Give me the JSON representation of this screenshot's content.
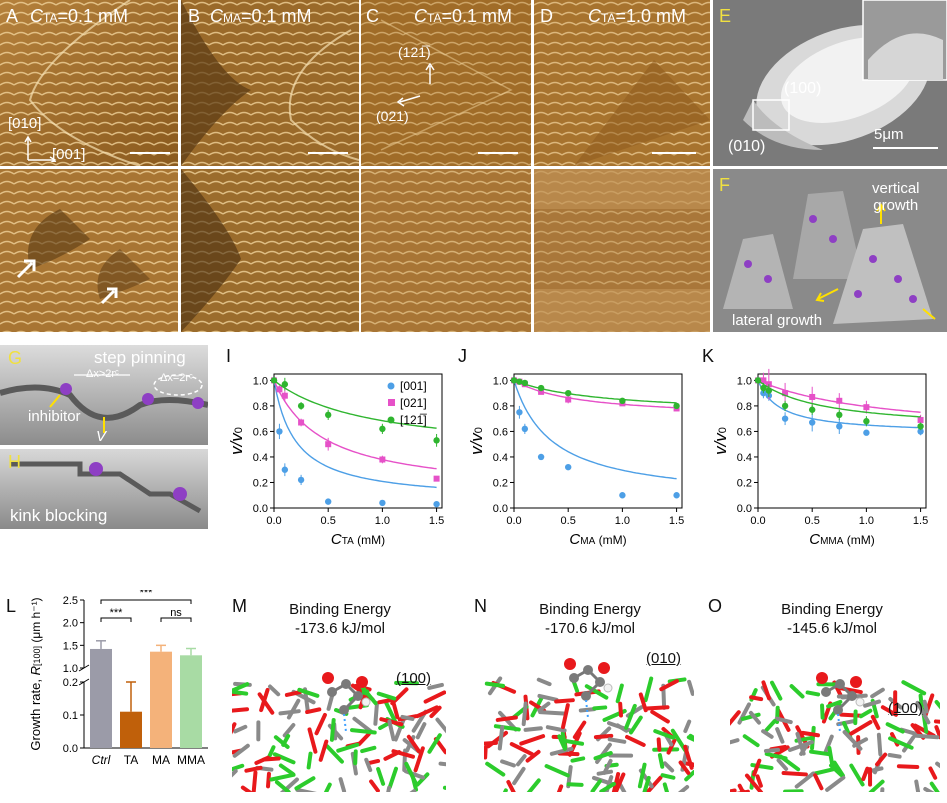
{
  "panels": {
    "A": {
      "letter": "A",
      "cond_sym": "C",
      "cond_sub": "TA",
      "cond_val": "=0.1 mM",
      "dir1": "[010]",
      "dir2": "[001]"
    },
    "B": {
      "letter": "B",
      "cond_sym": "C",
      "cond_sub": "MA",
      "cond_val": "=0.1 mM"
    },
    "C": {
      "letter": "C",
      "cond_sym": "C",
      "cond_sub": "TA",
      "cond_val": "=0.1 mM",
      "dir1": "(121̅)",
      "dir2": "(021)"
    },
    "D": {
      "letter": "D",
      "cond_sym": "C",
      "cond_sub": "TA",
      "cond_val": "=1.0 mM"
    },
    "E": {
      "letter": "E",
      "face1": "(100)",
      "face2": "(010)",
      "scale": "5μm"
    },
    "F": {
      "letter": "F",
      "label1": "vertical",
      "label2": "growth",
      "label3": "lateral growth"
    },
    "G": {
      "letter": "G",
      "title": "step pinning",
      "gap1": "Δx>2rᶜ",
      "gap2": "Δx=2rᶜ",
      "inhib": "inhibitor",
      "v": "V"
    },
    "H": {
      "letter": "H",
      "title": "kink blocking"
    },
    "I": {
      "letter": "I"
    },
    "J": {
      "letter": "J"
    },
    "K": {
      "letter": "K"
    },
    "L": {
      "letter": "L"
    },
    "M": {
      "letter": "M",
      "be_title": "Binding Energy",
      "be_value": "-173.6 kJ/mol",
      "face": "(100)"
    },
    "N": {
      "letter": "N",
      "be_title": "Binding Energy",
      "be_value": "-170.6 kJ/mol",
      "face": "(010)"
    },
    "O": {
      "letter": "O",
      "be_title": "Binding Energy",
      "be_value": "-145.6 kJ/mol",
      "face": "(100)"
    }
  },
  "colors": {
    "s001": "#4d9fe6",
    "s021": "#e651c8",
    "s121": "#2fb52f",
    "ctrl": "#9b9ba8",
    "ta": "#c0600a",
    "ma": "#f4b27a",
    "mma": "#a8dba4"
  },
  "chart_data": [
    {
      "type": "scatter",
      "panel": "I",
      "ylabel_v": "v",
      "ylabel_v0": "v",
      "ylabel_sub": "0",
      "xlabel_sym": "C",
      "xlabel_sub": "TA",
      "xlabel_unit": " (mM)",
      "xlim": [
        0,
        1.55
      ],
      "ylim": [
        0,
        1.05
      ],
      "xticks": [
        "0.0",
        "0.5",
        "1.0",
        "1.5"
      ],
      "xtick_vals": [
        0,
        0.5,
        1.0,
        1.5
      ],
      "yticks": [
        "0.0",
        "0.2",
        "0.4",
        "0.6",
        "0.8",
        "1.0"
      ],
      "ytick_vals": [
        0,
        0.2,
        0.4,
        0.6,
        0.8,
        1.0
      ],
      "legend": [
        "[001]",
        "[021]",
        "[121̅]"
      ],
      "series": [
        {
          "name": "[001]",
          "x": [
            0,
            0.05,
            0.1,
            0.25,
            0.5,
            1.0,
            1.5
          ],
          "y": [
            1.0,
            0.6,
            0.3,
            0.22,
            0.05,
            0.04,
            0.03
          ],
          "err": [
            0,
            0.06,
            0.05,
            0.04,
            0.01,
            0.01,
            0.01
          ],
          "fit": [
            1.0,
            0.95,
            0.2
          ]
        },
        {
          "name": "[021]",
          "x": [
            0,
            0.05,
            0.1,
            0.25,
            0.5,
            1.0,
            1.5
          ],
          "y": [
            1.0,
            0.93,
            0.88,
            0.67,
            0.5,
            0.38,
            0.23
          ],
          "err": [
            0,
            0.03,
            0.04,
            0.03,
            0.05,
            0.03,
            0.02
          ],
          "fit": [
            1.0,
            0.9,
            0.45
          ]
        },
        {
          "name": "[121̅]",
          "x": [
            0,
            0.1,
            0.25,
            0.5,
            1.0,
            1.5
          ],
          "y": [
            1.0,
            0.97,
            0.8,
            0.73,
            0.62,
            0.53
          ],
          "err": [
            0,
            0.05,
            0.03,
            0.04,
            0.04,
            0.05
          ],
          "fit": [
            1.0,
            0.6,
            0.9
          ]
        }
      ]
    },
    {
      "type": "scatter",
      "panel": "J",
      "ylabel_v": "v",
      "ylabel_v0": "v",
      "ylabel_sub": "0",
      "xlabel_sym": "C",
      "xlabel_sub": "MA",
      "xlabel_unit": " (mM)",
      "xlim": [
        0,
        1.55
      ],
      "ylim": [
        0,
        1.05
      ],
      "xticks": [
        "0.0",
        "0.5",
        "1.0",
        "1.5"
      ],
      "xtick_vals": [
        0,
        0.5,
        1.0,
        1.5
      ],
      "yticks": [
        "0.0",
        "0.2",
        "0.4",
        "0.6",
        "0.8",
        "1.0"
      ],
      "ytick_vals": [
        0,
        0.2,
        0.4,
        0.6,
        0.8,
        1.0
      ],
      "series": [
        {
          "name": "[001]",
          "x": [
            0,
            0.05,
            0.1,
            0.25,
            0.5,
            1.0,
            1.5
          ],
          "y": [
            1.0,
            0.75,
            0.62,
            0.4,
            0.32,
            0.1,
            0.1
          ],
          "err": [
            0,
            0.05,
            0.04,
            0.02,
            0.02,
            0.01,
            0.01
          ],
          "fit": [
            1.0,
            0.95,
            0.35
          ]
        },
        {
          "name": "[021]",
          "x": [
            0,
            0.05,
            0.1,
            0.25,
            0.5,
            1.0,
            1.5
          ],
          "y": [
            1.0,
            0.99,
            0.97,
            0.91,
            0.85,
            0.82,
            0.78
          ],
          "err": [
            0,
            0.01,
            0.02,
            0.02,
            0.03,
            0.02,
            0.02
          ],
          "fit": [
            1.0,
            0.3,
            0.6
          ]
        },
        {
          "name": "[121̅]",
          "x": [
            0,
            0.05,
            0.1,
            0.25,
            0.5,
            1.0,
            1.5
          ],
          "y": [
            1.0,
            0.99,
            0.98,
            0.94,
            0.9,
            0.84,
            0.8
          ],
          "err": [
            0,
            0.01,
            0.02,
            0.02,
            0.02,
            0.02,
            0.02
          ],
          "fit": [
            1.0,
            0.27,
            0.8
          ]
        }
      ]
    },
    {
      "type": "scatter",
      "panel": "K",
      "ylabel_v": "v",
      "ylabel_v0": "v",
      "ylabel_sub": "0",
      "xlabel_sym": "C",
      "xlabel_sub": "MMA",
      "xlabel_unit": " (mM)",
      "xlim": [
        0,
        1.55
      ],
      "ylim": [
        0,
        1.05
      ],
      "xticks": [
        "0.0",
        "0.5",
        "1.0",
        "1.5"
      ],
      "xtick_vals": [
        0,
        0.5,
        1.0,
        1.5
      ],
      "yticks": [
        "0.0",
        "0.2",
        "0.4",
        "0.6",
        "0.8",
        "1.0"
      ],
      "ytick_vals": [
        0,
        0.2,
        0.4,
        0.6,
        0.8,
        1.0
      ],
      "series": [
        {
          "name": "[001]",
          "x": [
            0,
            0.05,
            0.1,
            0.25,
            0.5,
            0.75,
            1.0,
            1.5
          ],
          "y": [
            1.0,
            0.9,
            0.88,
            0.7,
            0.67,
            0.64,
            0.59,
            0.6
          ],
          "err": [
            0,
            0.04,
            0.04,
            0.05,
            0.07,
            0.06,
            0.02,
            0.03
          ],
          "fit": [
            1.0,
            0.42,
            0.2
          ]
        },
        {
          "name": "[021]",
          "x": [
            0,
            0.05,
            0.1,
            0.25,
            0.5,
            0.75,
            1.0,
            1.5
          ],
          "y": [
            1.0,
            1.0,
            0.97,
            0.9,
            0.87,
            0.84,
            0.79,
            0.69
          ],
          "err": [
            0,
            0.06,
            0.12,
            0.08,
            0.08,
            0.06,
            0.05,
            0.04
          ],
          "fit": [
            1.0,
            0.45,
            1.2
          ]
        },
        {
          "name": "[121̅]",
          "x": [
            0,
            0.05,
            0.1,
            0.25,
            0.5,
            0.75,
            1.0,
            1.5
          ],
          "y": [
            1.0,
            0.94,
            0.92,
            0.8,
            0.77,
            0.73,
            0.68,
            0.64
          ],
          "err": [
            0,
            0.04,
            0.05,
            0.04,
            0.04,
            0.04,
            0.04,
            0.03
          ],
          "fit": [
            1.0,
            0.4,
            0.6
          ]
        }
      ]
    },
    {
      "type": "bar",
      "panel": "L",
      "ylabel": "Growth rate, ",
      "ylabel_sym": "R",
      "ylabel_sub": "[100]",
      "ylabel_unit": " (μm h⁻¹)",
      "categories": [
        "Ctrl",
        "TA",
        "MA",
        "MMA"
      ],
      "values": [
        1.42,
        0.11,
        1.36,
        1.28
      ],
      "errors": [
        0.18,
        0.09,
        0.14,
        0.15
      ],
      "yticks_upper": [
        "1.0",
        "1.5",
        "2.0",
        "2.5"
      ],
      "ytick_upper_vals": [
        1.0,
        1.5,
        2.0,
        2.5
      ],
      "yticks_lower": [
        "0.0",
        "0.1",
        "0.2"
      ],
      "ytick_lower_vals": [
        0,
        0.1,
        0.2
      ],
      "significance": [
        "***",
        "***",
        "ns"
      ]
    }
  ]
}
